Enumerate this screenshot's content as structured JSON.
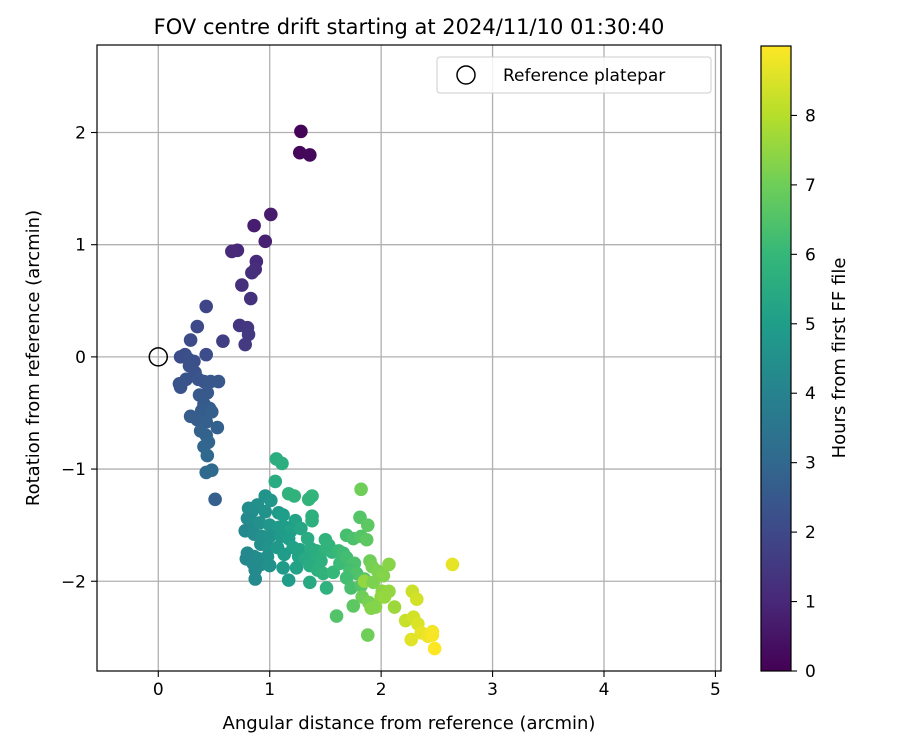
{
  "chart_data": {
    "type": "scatter",
    "title": "FOV centre drift starting at 2024/11/10 01:30:40",
    "xlabel": "Angular distance from reference (arcmin)",
    "ylabel": "Rotation from reference (arcmin)",
    "xlim": [
      -0.55,
      5.05
    ],
    "ylim": [
      -2.8,
      2.78
    ],
    "xticks": [
      0,
      1,
      2,
      3,
      4,
      5
    ],
    "xtick_labels": [
      "0",
      "1",
      "2",
      "3",
      "4",
      "5"
    ],
    "yticks": [
      -2,
      -1,
      0,
      1,
      2
    ],
    "ytick_labels": [
      "−2",
      "−1",
      "0",
      "1",
      "2"
    ],
    "grid": true,
    "legend": {
      "placement": "top-right",
      "entries": [
        "Reference platepar"
      ]
    },
    "colorbar": {
      "label": "Hours from first FF file",
      "min": 0,
      "max": 9,
      "ticks": [
        0,
        1,
        2,
        3,
        4,
        5,
        6,
        7,
        8
      ],
      "tick_labels": [
        "0",
        "1",
        "2",
        "3",
        "4",
        "5",
        "6",
        "7",
        "8"
      ],
      "colormap": [
        "#440154",
        "#482878",
        "#3e4989",
        "#31688e",
        "#26828e",
        "#1f9e89",
        "#35b779",
        "#6ece58",
        "#b5de2b",
        "#fde725"
      ]
    },
    "reference_point": {
      "x": 0,
      "y": 0
    },
    "points": [
      [
        1.28,
        2.01,
        0.1
      ],
      [
        1.27,
        1.82,
        0.15
      ],
      [
        1.36,
        1.8,
        0.2
      ],
      [
        1.01,
        1.27,
        0.7
      ],
      [
        0.86,
        1.17,
        0.75
      ],
      [
        0.96,
        1.03,
        0.8
      ],
      [
        0.71,
        0.95,
        1.0
      ],
      [
        0.66,
        0.94,
        1.05
      ],
      [
        0.88,
        0.85,
        1.1
      ],
      [
        0.87,
        0.78,
        1.15
      ],
      [
        0.84,
        0.75,
        1.2
      ],
      [
        0.75,
        0.64,
        1.25
      ],
      [
        0.83,
        0.52,
        1.3
      ],
      [
        0.73,
        0.28,
        1.4
      ],
      [
        0.8,
        0.26,
        1.45
      ],
      [
        0.81,
        0.2,
        1.5
      ],
      [
        0.78,
        0.11,
        1.55
      ],
      [
        0.58,
        0.14,
        1.7
      ],
      [
        0.43,
        0.45,
        1.9
      ],
      [
        0.35,
        0.27,
        2.0
      ],
      [
        0.29,
        0.15,
        2.05
      ],
      [
        0.43,
        0.02,
        2.1
      ],
      [
        0.2,
        0.0,
        2.1
      ],
      [
        0.24,
        0.02,
        2.15
      ],
      [
        0.27,
        -0.02,
        2.2
      ],
      [
        0.32,
        -0.04,
        2.2
      ],
      [
        0.28,
        -0.08,
        2.25
      ],
      [
        0.33,
        -0.14,
        2.3
      ],
      [
        0.25,
        -0.2,
        2.3
      ],
      [
        0.19,
        -0.24,
        2.35
      ],
      [
        0.2,
        -0.27,
        2.35
      ],
      [
        0.36,
        -0.2,
        2.4
      ],
      [
        0.41,
        -0.22,
        2.4
      ],
      [
        0.47,
        -0.22,
        2.45
      ],
      [
        0.54,
        -0.22,
        2.45
      ],
      [
        0.44,
        -0.32,
        2.5
      ],
      [
        0.37,
        -0.34,
        2.5
      ],
      [
        0.41,
        -0.42,
        2.55
      ],
      [
        0.46,
        -0.46,
        2.6
      ],
      [
        0.39,
        -0.48,
        2.6
      ],
      [
        0.29,
        -0.53,
        2.65
      ],
      [
        0.35,
        -0.56,
        2.65
      ],
      [
        0.48,
        -0.49,
        2.7
      ],
      [
        0.43,
        -0.58,
        2.7
      ],
      [
        0.53,
        -0.63,
        2.75
      ],
      [
        0.38,
        -0.66,
        2.8
      ],
      [
        0.43,
        -0.7,
        2.85
      ],
      [
        0.45,
        -0.76,
        2.9
      ],
      [
        0.41,
        -0.8,
        2.95
      ],
      [
        0.44,
        -0.88,
        3.0
      ],
      [
        0.48,
        -1.01,
        3.05
      ],
      [
        0.43,
        -1.03,
        3.1
      ],
      [
        0.51,
        -1.27,
        2.7
      ],
      [
        1.06,
        -0.91,
        5.6
      ],
      [
        1.11,
        -0.95,
        5.65
      ],
      [
        1.05,
        -1.11,
        5.5
      ],
      [
        1.17,
        -1.22,
        5.8
      ],
      [
        1.22,
        -1.24,
        5.8
      ],
      [
        1.38,
        -1.24,
        5.9
      ],
      [
        1.35,
        -1.27,
        5.85
      ],
      [
        0.96,
        -1.24,
        4.6
      ],
      [
        1.01,
        -1.28,
        4.7
      ],
      [
        0.89,
        -1.32,
        4.5
      ],
      [
        0.81,
        -1.35,
        4.4
      ],
      [
        0.84,
        -1.38,
        4.45
      ],
      [
        0.96,
        -1.38,
        4.6
      ],
      [
        1.08,
        -1.39,
        4.9
      ],
      [
        1.12,
        -1.41,
        5.0
      ],
      [
        1.23,
        -1.46,
        5.2
      ],
      [
        1.38,
        -1.42,
        5.7
      ],
      [
        1.38,
        -1.46,
        5.7
      ],
      [
        0.8,
        -1.44,
        4.3
      ],
      [
        0.85,
        -1.48,
        4.4
      ],
      [
        0.91,
        -1.48,
        4.5
      ],
      [
        1.0,
        -1.5,
        4.7
      ],
      [
        1.08,
        -1.52,
        4.85
      ],
      [
        1.14,
        -1.52,
        4.95
      ],
      [
        1.19,
        -1.55,
        5.1
      ],
      [
        1.28,
        -1.53,
        5.3
      ],
      [
        0.78,
        -1.55,
        4.2
      ],
      [
        0.86,
        -1.58,
        4.35
      ],
      [
        0.93,
        -1.6,
        4.5
      ],
      [
        1.0,
        -1.6,
        4.6
      ],
      [
        1.1,
        -1.6,
        4.85
      ],
      [
        1.17,
        -1.62,
        5.0
      ],
      [
        1.34,
        -1.62,
        5.5
      ],
      [
        0.92,
        -1.67,
        4.45
      ],
      [
        0.99,
        -1.7,
        4.6
      ],
      [
        1.07,
        -1.7,
        4.8
      ],
      [
        1.21,
        -1.7,
        5.1
      ],
      [
        1.27,
        -1.72,
        5.2
      ],
      [
        1.37,
        -1.71,
        5.5
      ],
      [
        1.42,
        -1.73,
        5.6
      ],
      [
        1.5,
        -1.72,
        5.8
      ],
      [
        1.56,
        -1.74,
        5.9
      ],
      [
        0.8,
        -1.75,
        4.25
      ],
      [
        0.86,
        -1.78,
        4.35
      ],
      [
        0.9,
        -1.8,
        4.4
      ],
      [
        0.98,
        -1.78,
        4.55
      ],
      [
        1.13,
        -1.76,
        4.95
      ],
      [
        1.26,
        -1.78,
        5.2
      ],
      [
        1.32,
        -1.8,
        5.4
      ],
      [
        1.41,
        -1.8,
        5.6
      ],
      [
        1.46,
        -1.82,
        5.7
      ],
      [
        0.79,
        -1.8,
        4.2
      ],
      [
        0.85,
        -1.84,
        4.3
      ],
      [
        0.92,
        -1.85,
        4.4
      ],
      [
        1.0,
        -1.86,
        4.55
      ],
      [
        1.12,
        -1.88,
        4.9
      ],
      [
        1.24,
        -1.88,
        5.15
      ],
      [
        1.36,
        -1.86,
        5.5
      ],
      [
        1.43,
        -1.9,
        5.7
      ],
      [
        1.48,
        -1.93,
        5.8
      ],
      [
        1.57,
        -1.92,
        6.0
      ],
      [
        0.87,
        -1.9,
        4.3
      ],
      [
        0.87,
        -1.98,
        4.3
      ],
      [
        1.17,
        -1.99,
        4.95
      ],
      [
        1.36,
        -2.01,
        5.45
      ],
      [
        1.51,
        -2.06,
        5.75
      ],
      [
        1.5,
        -1.63,
        5.8
      ],
      [
        1.53,
        -1.68,
        5.85
      ],
      [
        1.62,
        -1.73,
        6.05
      ],
      [
        1.66,
        -1.75,
        6.15
      ],
      [
        1.63,
        -1.84,
        6.1
      ],
      [
        1.69,
        -1.59,
        6.3
      ],
      [
        1.75,
        -1.62,
        6.4
      ],
      [
        1.82,
        -1.6,
        6.55
      ],
      [
        1.81,
        -1.43,
        6.55
      ],
      [
        1.88,
        -1.5,
        6.7
      ],
      [
        1.87,
        -1.63,
        6.7
      ],
      [
        1.69,
        -1.79,
        6.25
      ],
      [
        1.76,
        -1.84,
        6.4
      ],
      [
        1.72,
        -1.9,
        6.3
      ],
      [
        1.78,
        -1.93,
        6.45
      ],
      [
        1.69,
        -1.97,
        6.25
      ],
      [
        1.73,
        -2.06,
        6.35
      ],
      [
        1.82,
        -2.04,
        6.55
      ],
      [
        1.85,
        -1.98,
        6.6
      ],
      [
        1.85,
        -2.0,
        7.5
      ],
      [
        1.9,
        -1.82,
        7.0
      ],
      [
        1.92,
        -1.87,
        7.1
      ],
      [
        1.97,
        -1.91,
        7.2
      ],
      [
        2.02,
        -1.95,
        7.3
      ],
      [
        2.07,
        -1.85,
        7.35
      ],
      [
        1.93,
        -2.01,
        7.2
      ],
      [
        2.01,
        -2.09,
        7.4
      ],
      [
        2.07,
        -2.09,
        7.5
      ],
      [
        2.0,
        -2.14,
        7.45
      ],
      [
        1.83,
        -2.14,
        7.0
      ],
      [
        1.89,
        -2.19,
        7.1
      ],
      [
        1.95,
        -2.23,
        7.35
      ],
      [
        1.91,
        -2.24,
        7.3
      ],
      [
        2.03,
        -2.14,
        7.55
      ],
      [
        2.12,
        -2.23,
        7.65
      ],
      [
        1.75,
        -2.22,
        6.7
      ],
      [
        1.6,
        -2.31,
        6.5
      ],
      [
        1.88,
        -2.48,
        7.0
      ],
      [
        1.82,
        -1.18,
        7.0
      ],
      [
        2.64,
        -1.85,
        8.7
      ],
      [
        2.28,
        -2.09,
        8.3
      ],
      [
        2.32,
        -2.16,
        8.4
      ],
      [
        2.22,
        -2.35,
        8.25
      ],
      [
        2.29,
        -2.32,
        8.4
      ],
      [
        2.33,
        -2.38,
        8.5
      ],
      [
        2.36,
        -2.46,
        8.7
      ],
      [
        2.42,
        -2.49,
        8.8
      ],
      [
        2.46,
        -2.45,
        8.85
      ],
      [
        2.46,
        -2.48,
        8.9
      ],
      [
        2.27,
        -2.52,
        8.6
      ],
      [
        2.48,
        -2.6,
        9.0
      ]
    ]
  }
}
